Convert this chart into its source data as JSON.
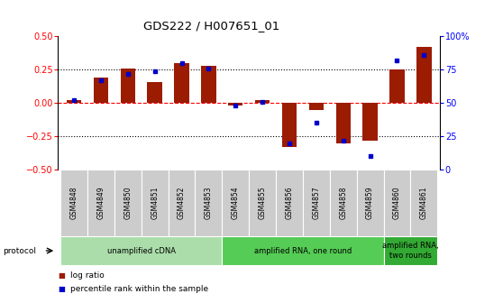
{
  "title": "GDS222 / H007651_01",
  "samples": [
    "GSM4848",
    "GSM4849",
    "GSM4850",
    "GSM4851",
    "GSM4852",
    "GSM4853",
    "GSM4854",
    "GSM4855",
    "GSM4856",
    "GSM4857",
    "GSM4858",
    "GSM4859",
    "GSM4860",
    "GSM4861"
  ],
  "log_ratio": [
    0.02,
    0.19,
    0.26,
    0.16,
    0.3,
    0.28,
    -0.02,
    0.02,
    -0.33,
    -0.05,
    -0.3,
    -0.28,
    0.25,
    0.42
  ],
  "percentile": [
    52,
    67,
    72,
    74,
    80,
    76,
    48,
    51,
    20,
    35,
    22,
    10,
    82,
    86
  ],
  "bar_color": "#9B1C00",
  "dot_color": "#0000CC",
  "protocol_groups": [
    {
      "label": "unamplified cDNA",
      "start": 0,
      "end": 5,
      "color": "#AADDAA"
    },
    {
      "label": "amplified RNA, one round",
      "start": 6,
      "end": 11,
      "color": "#55CC55"
    },
    {
      "label": "amplified RNA,\ntwo rounds",
      "start": 12,
      "end": 13,
      "color": "#33AA33"
    }
  ],
  "ylim": [
    -0.5,
    0.5
  ],
  "y2lim": [
    0,
    100
  ],
  "yticks": [
    -0.5,
    -0.25,
    0.0,
    0.25,
    0.5
  ],
  "y2ticks": [
    0,
    25,
    50,
    75,
    100
  ],
  "background_color": "#FFFFFF",
  "tick_label_bg": "#CCCCCC"
}
